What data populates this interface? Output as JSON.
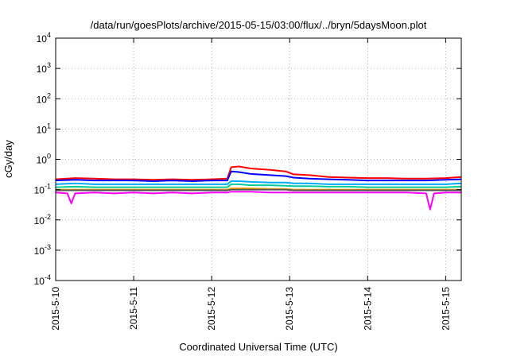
{
  "chart_data": {
    "type": "line",
    "title": "/data/run/goesPlots/archive/2015-05-15/03:00/flux/../bryn/5daysMoon.plot",
    "xlabel": "Coordinated Universal Time (UTC)",
    "ylabel": "cGy/day",
    "yscale": "log",
    "ylim": [
      0.0001,
      10000
    ],
    "xlim": [
      0,
      5.2
    ],
    "grid": true,
    "x_tick_labels": [
      "2015-5-10",
      "2015-5-11",
      "2015-5-12",
      "2015-5-13",
      "2015-5-14",
      "2015-5-15"
    ],
    "y_ticks": [
      {
        "base": "10",
        "exp": "4",
        "value": 10000
      },
      {
        "base": "10",
        "exp": "3",
        "value": 1000
      },
      {
        "base": "10",
        "exp": "2",
        "value": 100
      },
      {
        "base": "10",
        "exp": "1",
        "value": 10
      },
      {
        "base": "10",
        "exp": "0",
        "value": 1
      },
      {
        "base": "10",
        "exp": "-1",
        "value": 0.1
      },
      {
        "base": "10",
        "exp": "-2",
        "value": 0.01
      },
      {
        "base": "10",
        "exp": "-3",
        "value": 0.001
      },
      {
        "base": "10",
        "exp": "-4",
        "value": 0.0001
      }
    ],
    "series": [
      {
        "color": "#ff0000",
        "x": [
          0,
          0.25,
          0.5,
          0.75,
          1,
          1.25,
          1.5,
          1.75,
          2,
          2.2,
          2.25,
          2.35,
          2.5,
          2.75,
          2.95,
          3.05,
          3.25,
          3.5,
          3.75,
          4,
          4.25,
          4.5,
          4.75,
          5,
          5.2
        ],
        "values": [
          0.22,
          0.24,
          0.23,
          0.22,
          0.22,
          0.21,
          0.22,
          0.21,
          0.22,
          0.23,
          0.55,
          0.58,
          0.5,
          0.45,
          0.4,
          0.32,
          0.3,
          0.26,
          0.25,
          0.24,
          0.24,
          0.23,
          0.23,
          0.24,
          0.26
        ]
      },
      {
        "color": "#0000ff",
        "x": [
          0,
          0.25,
          0.5,
          0.75,
          1,
          1.25,
          1.5,
          1.75,
          2,
          2.2,
          2.25,
          2.35,
          2.5,
          2.75,
          2.95,
          3.05,
          3.25,
          3.5,
          3.75,
          4,
          4.25,
          4.5,
          4.75,
          5,
          5.2
        ],
        "values": [
          0.2,
          0.21,
          0.2,
          0.2,
          0.2,
          0.19,
          0.2,
          0.19,
          0.2,
          0.2,
          0.4,
          0.38,
          0.33,
          0.3,
          0.28,
          0.25,
          0.23,
          0.22,
          0.21,
          0.2,
          0.2,
          0.2,
          0.2,
          0.21,
          0.22
        ]
      },
      {
        "color": "#00aaff",
        "x": [
          0,
          0.25,
          0.5,
          0.75,
          1,
          1.25,
          1.5,
          1.75,
          2,
          2.2,
          2.25,
          2.35,
          2.5,
          2.75,
          2.95,
          3.05,
          3.25,
          3.5,
          3.75,
          4,
          4.25,
          4.5,
          4.75,
          5,
          5.2
        ],
        "values": [
          0.15,
          0.16,
          0.15,
          0.15,
          0.15,
          0.15,
          0.15,
          0.15,
          0.15,
          0.15,
          0.19,
          0.19,
          0.18,
          0.17,
          0.17,
          0.16,
          0.16,
          0.15,
          0.15,
          0.15,
          0.15,
          0.15,
          0.15,
          0.15,
          0.16
        ]
      },
      {
        "color": "#00cc99",
        "x": [
          0,
          0.25,
          0.5,
          0.75,
          1,
          1.25,
          1.5,
          1.75,
          2,
          2.2,
          2.25,
          2.35,
          2.5,
          2.75,
          2.95,
          3.05,
          3.25,
          3.5,
          3.75,
          4,
          4.25,
          4.5,
          4.75,
          5,
          5.2
        ],
        "values": [
          0.12,
          0.125,
          0.12,
          0.12,
          0.12,
          0.12,
          0.12,
          0.12,
          0.12,
          0.12,
          0.15,
          0.15,
          0.14,
          0.14,
          0.135,
          0.13,
          0.13,
          0.125,
          0.125,
          0.12,
          0.12,
          0.12,
          0.12,
          0.12,
          0.125
        ]
      },
      {
        "color": "#ffaa00",
        "x": [
          0,
          0.25,
          0.5,
          0.75,
          1,
          1.25,
          1.5,
          1.75,
          2,
          2.2,
          2.25,
          2.35,
          2.5,
          2.75,
          2.95,
          3.05,
          3.25,
          3.5,
          3.75,
          4,
          4.25,
          4.5,
          4.75,
          5,
          5.2
        ],
        "values": [
          0.1,
          0.1,
          0.1,
          0.1,
          0.1,
          0.1,
          0.1,
          0.1,
          0.1,
          0.1,
          0.11,
          0.11,
          0.11,
          0.105,
          0.105,
          0.1,
          0.1,
          0.1,
          0.1,
          0.1,
          0.1,
          0.1,
          0.1,
          0.1,
          0.1
        ]
      },
      {
        "color": "#555555",
        "x": [
          0,
          0.25,
          0.5,
          0.75,
          1,
          1.25,
          1.5,
          1.75,
          2,
          2.2,
          2.25,
          2.35,
          2.5,
          2.75,
          2.95,
          3.05,
          3.25,
          3.5,
          3.75,
          4,
          4.25,
          4.5,
          4.75,
          5,
          5.2
        ],
        "values": [
          0.095,
          0.095,
          0.095,
          0.095,
          0.095,
          0.095,
          0.095,
          0.095,
          0.095,
          0.095,
          0.1,
          0.1,
          0.1,
          0.1,
          0.1,
          0.095,
          0.095,
          0.095,
          0.095,
          0.095,
          0.095,
          0.095,
          0.095,
          0.095,
          0.095
        ]
      },
      {
        "color": "#ff00ff",
        "x": [
          0,
          0.15,
          0.2,
          0.25,
          0.5,
          0.75,
          1,
          1.25,
          1.5,
          1.75,
          2,
          2.2,
          2.25,
          2.35,
          2.5,
          2.75,
          2.95,
          3.05,
          3.25,
          3.5,
          3.75,
          4,
          4.25,
          4.5,
          4.75,
          4.8,
          4.85,
          5,
          5.2
        ],
        "values": [
          0.08,
          0.075,
          0.035,
          0.075,
          0.08,
          0.075,
          0.08,
          0.075,
          0.08,
          0.075,
          0.08,
          0.08,
          0.085,
          0.085,
          0.085,
          0.08,
          0.08,
          0.08,
          0.08,
          0.08,
          0.08,
          0.08,
          0.08,
          0.08,
          0.075,
          0.022,
          0.075,
          0.08,
          0.08
        ]
      }
    ]
  }
}
